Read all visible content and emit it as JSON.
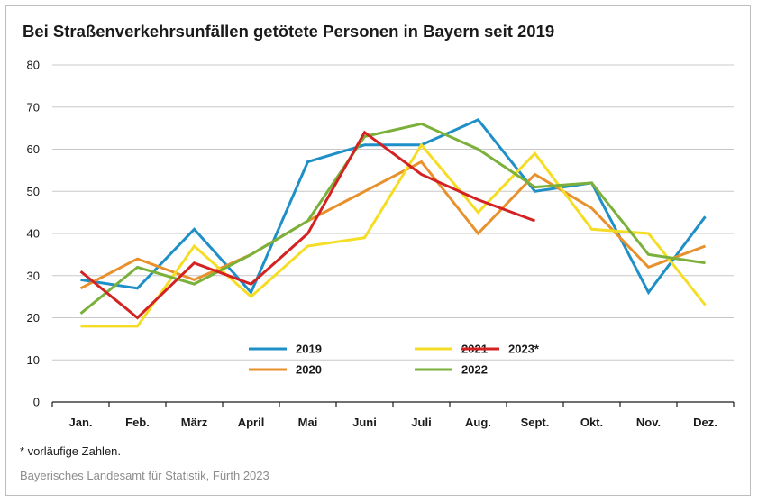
{
  "title": "Bei Straßenverkehrsunfällen getötete Personen in Bayern seit 2019",
  "footnote": "* vorläufige Zahlen.",
  "source": "Bayerisches Landesamt für Statistik, Fürth 2023",
  "chart_data": {
    "type": "line",
    "title": "Bei Straßenverkehrsunfällen getötete Personen in Bayern seit 2019",
    "xlabel": "",
    "ylabel": "",
    "ylim": [
      0,
      80
    ],
    "yticks": [
      0,
      10,
      20,
      30,
      40,
      50,
      60,
      70,
      80
    ],
    "grid": true,
    "legend_position": "lower-center",
    "categories": [
      "Jan.",
      "Feb.",
      "März",
      "April",
      "Mai",
      "Juni",
      "Juli",
      "Aug.",
      "Sept.",
      "Okt.",
      "Nov.",
      "Dez."
    ],
    "series": [
      {
        "name": "2019",
        "color": "#1f8fc7",
        "values": [
          29,
          27,
          41,
          26,
          57,
          61,
          61,
          67,
          50,
          52,
          26,
          44
        ]
      },
      {
        "name": "2020",
        "color": "#e8912c",
        "values": [
          27,
          34,
          29,
          35,
          43,
          50,
          57,
          40,
          54,
          46,
          32,
          37
        ]
      },
      {
        "name": "2021",
        "color": "#f6dd25",
        "values": [
          18,
          18,
          37,
          25,
          37,
          39,
          61,
          45,
          59,
          41,
          40,
          23
        ]
      },
      {
        "name": "2022",
        "color": "#7bb13a",
        "values": [
          21,
          32,
          28,
          35,
          43,
          63,
          66,
          60,
          51,
          52,
          35,
          33
        ]
      },
      {
        "name": "2023*",
        "color": "#d42222",
        "values": [
          31,
          20,
          33,
          28,
          40,
          64,
          54,
          48,
          43,
          null,
          null,
          null
        ]
      }
    ],
    "legend_order": [
      "2019",
      "2021",
      "2023*",
      "2020",
      "2022"
    ]
  }
}
